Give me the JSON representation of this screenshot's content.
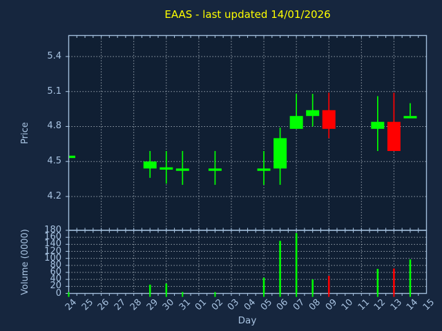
{
  "title": {
    "text": "EAAS - last updated 14/01/2026"
  },
  "colors": {
    "figure_bg": "#16263e",
    "axes_bg": "#101f33",
    "spine": "#a3bfdc",
    "grid": "#c9d2da",
    "text": "#a9c4e2",
    "title": "#ffff00",
    "up": "#00ff00",
    "down": "#ff0000"
  },
  "chart_data": {
    "type": "candlestick",
    "title": "EAAS - last updated 14/01/2026",
    "xlabel": "Day",
    "x_labels": [
      "24",
      "25",
      "26",
      "27",
      "28",
      "29",
      "30",
      "31",
      "01",
      "02",
      "03",
      "04",
      "05",
      "06",
      "07",
      "08",
      "09",
      "10",
      "11",
      "12",
      "13",
      "14",
      "15"
    ],
    "grid": "dotted, vertical line every 2 days, legend none",
    "price_axis": {
      "label": "Price",
      "tick_labels": [
        "5.4",
        "5.1",
        "4.8",
        "4.5",
        "4.2"
      ],
      "ticks": [
        5.4,
        5.1,
        4.8,
        4.5,
        4.2
      ],
      "ylim": [
        3.91,
        5.58
      ]
    },
    "volume_axis": {
      "label": "Volume (0000)",
      "tick_labels": [
        "180",
        "160",
        "140",
        "120",
        "100",
        "80",
        "60",
        "40",
        "20",
        "0"
      ],
      "ticks": [
        180,
        160,
        140,
        120,
        100,
        80,
        60,
        40,
        20,
        0
      ],
      "ylim": [
        0,
        180
      ]
    },
    "candles": [
      {
        "day": "24",
        "i": 0,
        "open": 4.55,
        "high": 4.55,
        "low": 4.55,
        "close": 4.55,
        "volume": 0,
        "direction": "up"
      },
      {
        "day": "29",
        "i": 5,
        "open": 4.44,
        "high": 4.59,
        "low": 4.36,
        "close": 4.5,
        "volume": 25,
        "direction": "up"
      },
      {
        "day": "30",
        "i": 6,
        "open": 4.44,
        "high": 4.59,
        "low": 4.31,
        "close": 4.45,
        "volume": 28,
        "direction": "up"
      },
      {
        "day": "31",
        "i": 7,
        "open": 4.44,
        "high": 4.59,
        "low": 4.3,
        "close": 4.44,
        "volume": 3,
        "direction": "up"
      },
      {
        "day": "02",
        "i": 9,
        "open": 4.44,
        "high": 4.59,
        "low": 4.3,
        "close": 4.44,
        "volume": 2,
        "direction": "up"
      },
      {
        "day": "05",
        "i": 12,
        "open": 4.44,
        "high": 4.59,
        "low": 4.3,
        "close": 4.44,
        "volume": 45,
        "direction": "up"
      },
      {
        "day": "06",
        "i": 13,
        "open": 4.44,
        "high": 4.79,
        "low": 4.3,
        "close": 4.7,
        "volume": 150,
        "direction": "up"
      },
      {
        "day": "07",
        "i": 14,
        "open": 4.78,
        "high": 5.08,
        "low": 4.78,
        "close": 4.89,
        "volume": 172,
        "direction": "up"
      },
      {
        "day": "08",
        "i": 15,
        "open": 4.89,
        "high": 5.08,
        "low": 4.8,
        "close": 4.94,
        "volume": 40,
        "direction": "up"
      },
      {
        "day": "09",
        "i": 16,
        "open": 4.94,
        "high": 5.09,
        "low": 4.7,
        "close": 4.78,
        "volume": 50,
        "direction": "down"
      },
      {
        "day": "12",
        "i": 19,
        "open": 4.78,
        "high": 5.06,
        "low": 4.59,
        "close": 4.84,
        "volume": 70,
        "direction": "up"
      },
      {
        "day": "13",
        "i": 20,
        "open": 4.84,
        "high": 5.09,
        "low": 4.59,
        "close": 4.59,
        "volume": 71,
        "direction": "down"
      },
      {
        "day": "14",
        "i": 21,
        "open": 4.89,
        "high": 5.0,
        "low": 4.89,
        "close": 4.89,
        "volume": 97,
        "direction": "up"
      }
    ]
  }
}
